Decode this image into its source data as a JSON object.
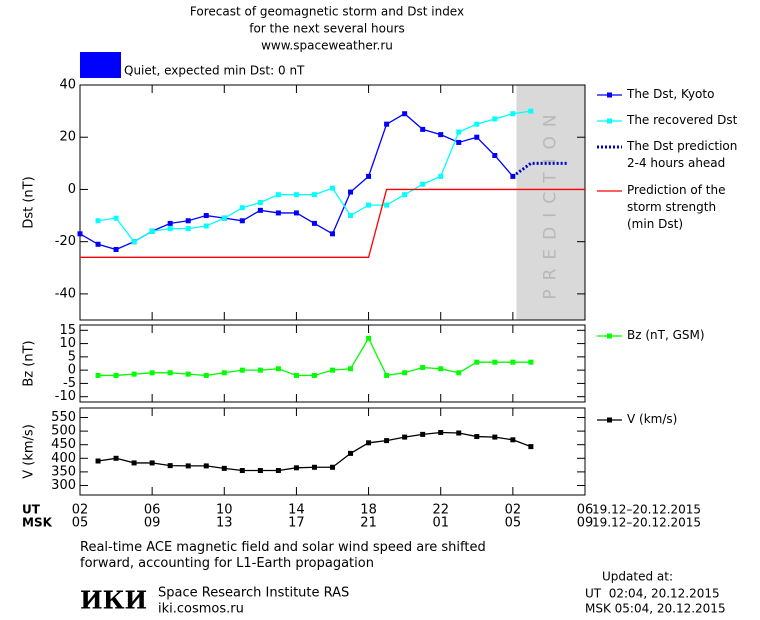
{
  "chart_data": [
    {
      "type": "line",
      "title": "Forecast of geomagnetic storm and Dst index",
      "subtitle": "for the next several hours",
      "source": "www.spaceweather.ru",
      "status": {
        "text": "Quiet, expected min Dst: 0 nT",
        "color": "#0000ff"
      },
      "ylabel": "Dst (nT)",
      "ylim": [
        -50,
        40
      ],
      "yticks": [
        -40,
        -20,
        0,
        20,
        40
      ],
      "xlim": [
        0,
        28
      ],
      "prediction_band": {
        "label": "PREDICTION",
        "range": [
          24.2,
          28
        ],
        "color": "#d9d9d9"
      },
      "series": [
        {
          "name": "The Dst, Kyoto",
          "color": "#0000ff",
          "marker": true,
          "x": [
            0,
            1,
            2,
            3,
            4,
            5,
            6,
            7,
            8,
            9,
            10,
            11,
            12,
            13,
            14,
            15,
            16,
            17,
            18,
            19,
            20,
            21,
            22,
            23,
            24
          ],
          "values": [
            -17,
            -21,
            -23,
            -20,
            -16,
            -13,
            -12,
            -10,
            -11,
            -12,
            -8,
            -9,
            -9,
            -13,
            -17,
            -1,
            5,
            25,
            29,
            23,
            21,
            18,
            20,
            13,
            5
          ]
        },
        {
          "name": "The recovered Dst",
          "color": "#00ffff",
          "marker": true,
          "x": [
            1,
            2,
            3,
            4,
            5,
            6,
            7,
            8,
            9,
            10,
            11,
            12,
            13,
            14,
            15,
            16,
            17,
            18,
            19,
            20,
            21,
            22,
            23,
            24,
            25
          ],
          "values": [
            -12,
            -11,
            -20,
            -16,
            -15,
            -15,
            -14,
            -11,
            -7,
            -5,
            -2,
            -2,
            -2,
            0.5,
            -10,
            -6,
            -6,
            -2,
            2,
            5,
            22,
            25,
            27,
            29,
            30
          ]
        },
        {
          "name": "The Dst prediction\n2-4 hours ahead",
          "color": "#0000cc",
          "dashed": true,
          "x": [
            24,
            25,
            27
          ],
          "values": [
            5,
            10,
            10
          ]
        },
        {
          "name": "Prediction of the\nstorm strength\n(min Dst)",
          "color": "#ff0000",
          "x": [
            0,
            16,
            17,
            28
          ],
          "values": [
            -26,
            -26,
            0,
            0
          ]
        }
      ]
    },
    {
      "type": "line",
      "ylabel": "Bz (nT)",
      "ylim": [
        -12,
        17
      ],
      "yticks": [
        -10,
        -5,
        0,
        5,
        10,
        15
      ],
      "xlim": [
        0,
        28
      ],
      "series": [
        {
          "name": "Bz (nT, GSM)",
          "color": "#00ff00",
          "marker": true,
          "x": [
            1,
            2,
            3,
            4,
            5,
            6,
            7,
            8,
            9,
            10,
            11,
            12,
            13,
            14,
            15,
            16,
            17,
            18,
            19,
            20,
            21,
            22,
            23,
            24,
            25
          ],
          "values": [
            -2,
            -2,
            -1.5,
            -1,
            -1,
            -1.5,
            -2,
            -1,
            0,
            0,
            0.5,
            -2,
            -2,
            0,
            0.5,
            12,
            -2,
            -1,
            1,
            0.5,
            -1,
            3,
            3,
            3,
            3
          ]
        }
      ]
    },
    {
      "type": "line",
      "ylabel": "V (km/s)",
      "ylim": [
        265,
        585
      ],
      "yticks": [
        300,
        350,
        400,
        450,
        500,
        550
      ],
      "xlim": [
        0,
        28
      ],
      "series": [
        {
          "name": "V (km/s)",
          "color": "#000000",
          "marker": true,
          "x": [
            1,
            2,
            3,
            4,
            5,
            6,
            7,
            8,
            9,
            10,
            11,
            12,
            13,
            14,
            15,
            16,
            17,
            18,
            19,
            20,
            21,
            22,
            23,
            24,
            25
          ],
          "values": [
            390,
            400,
            383,
            383,
            373,
            372,
            372,
            363,
            355,
            355,
            355,
            365,
            367,
            367,
            418,
            457,
            465,
            478,
            488,
            495,
            493,
            480,
            478,
            468,
            443
          ]
        }
      ],
      "xlabel": "UT",
      "xlabel2": "MSK",
      "xticks": [
        {
          "value": 0,
          "label": "02"
        },
        {
          "value": 4,
          "label": "06"
        },
        {
          "value": 8,
          "label": "10"
        },
        {
          "value": 12,
          "label": "14"
        },
        {
          "value": 16,
          "label": "18"
        },
        {
          "value": 20,
          "label": "22"
        },
        {
          "value": 24,
          "label": "02"
        },
        {
          "value": 28,
          "label": "06"
        }
      ],
      "xticks2": [
        "05",
        "09",
        "13",
        "17",
        "21",
        "01",
        "05",
        "09"
      ],
      "date_range": "19.12–20.12.2015",
      "date_range2": "19.12–20.12.2015"
    }
  ],
  "footer": {
    "note": "Real-time ACE magnetic field and solar wind speed are shifted\nforward, accounting for L1-Earth propagation",
    "logo": "ИКИ",
    "institute": "Space Research Institute RAS",
    "url": "iki.cosmos.ru",
    "updated_label": "Updated at:",
    "updated_ut": "UT  02:04, 20.12.2015",
    "updated_msk": "MSK 05:04, 20.12.2015"
  }
}
